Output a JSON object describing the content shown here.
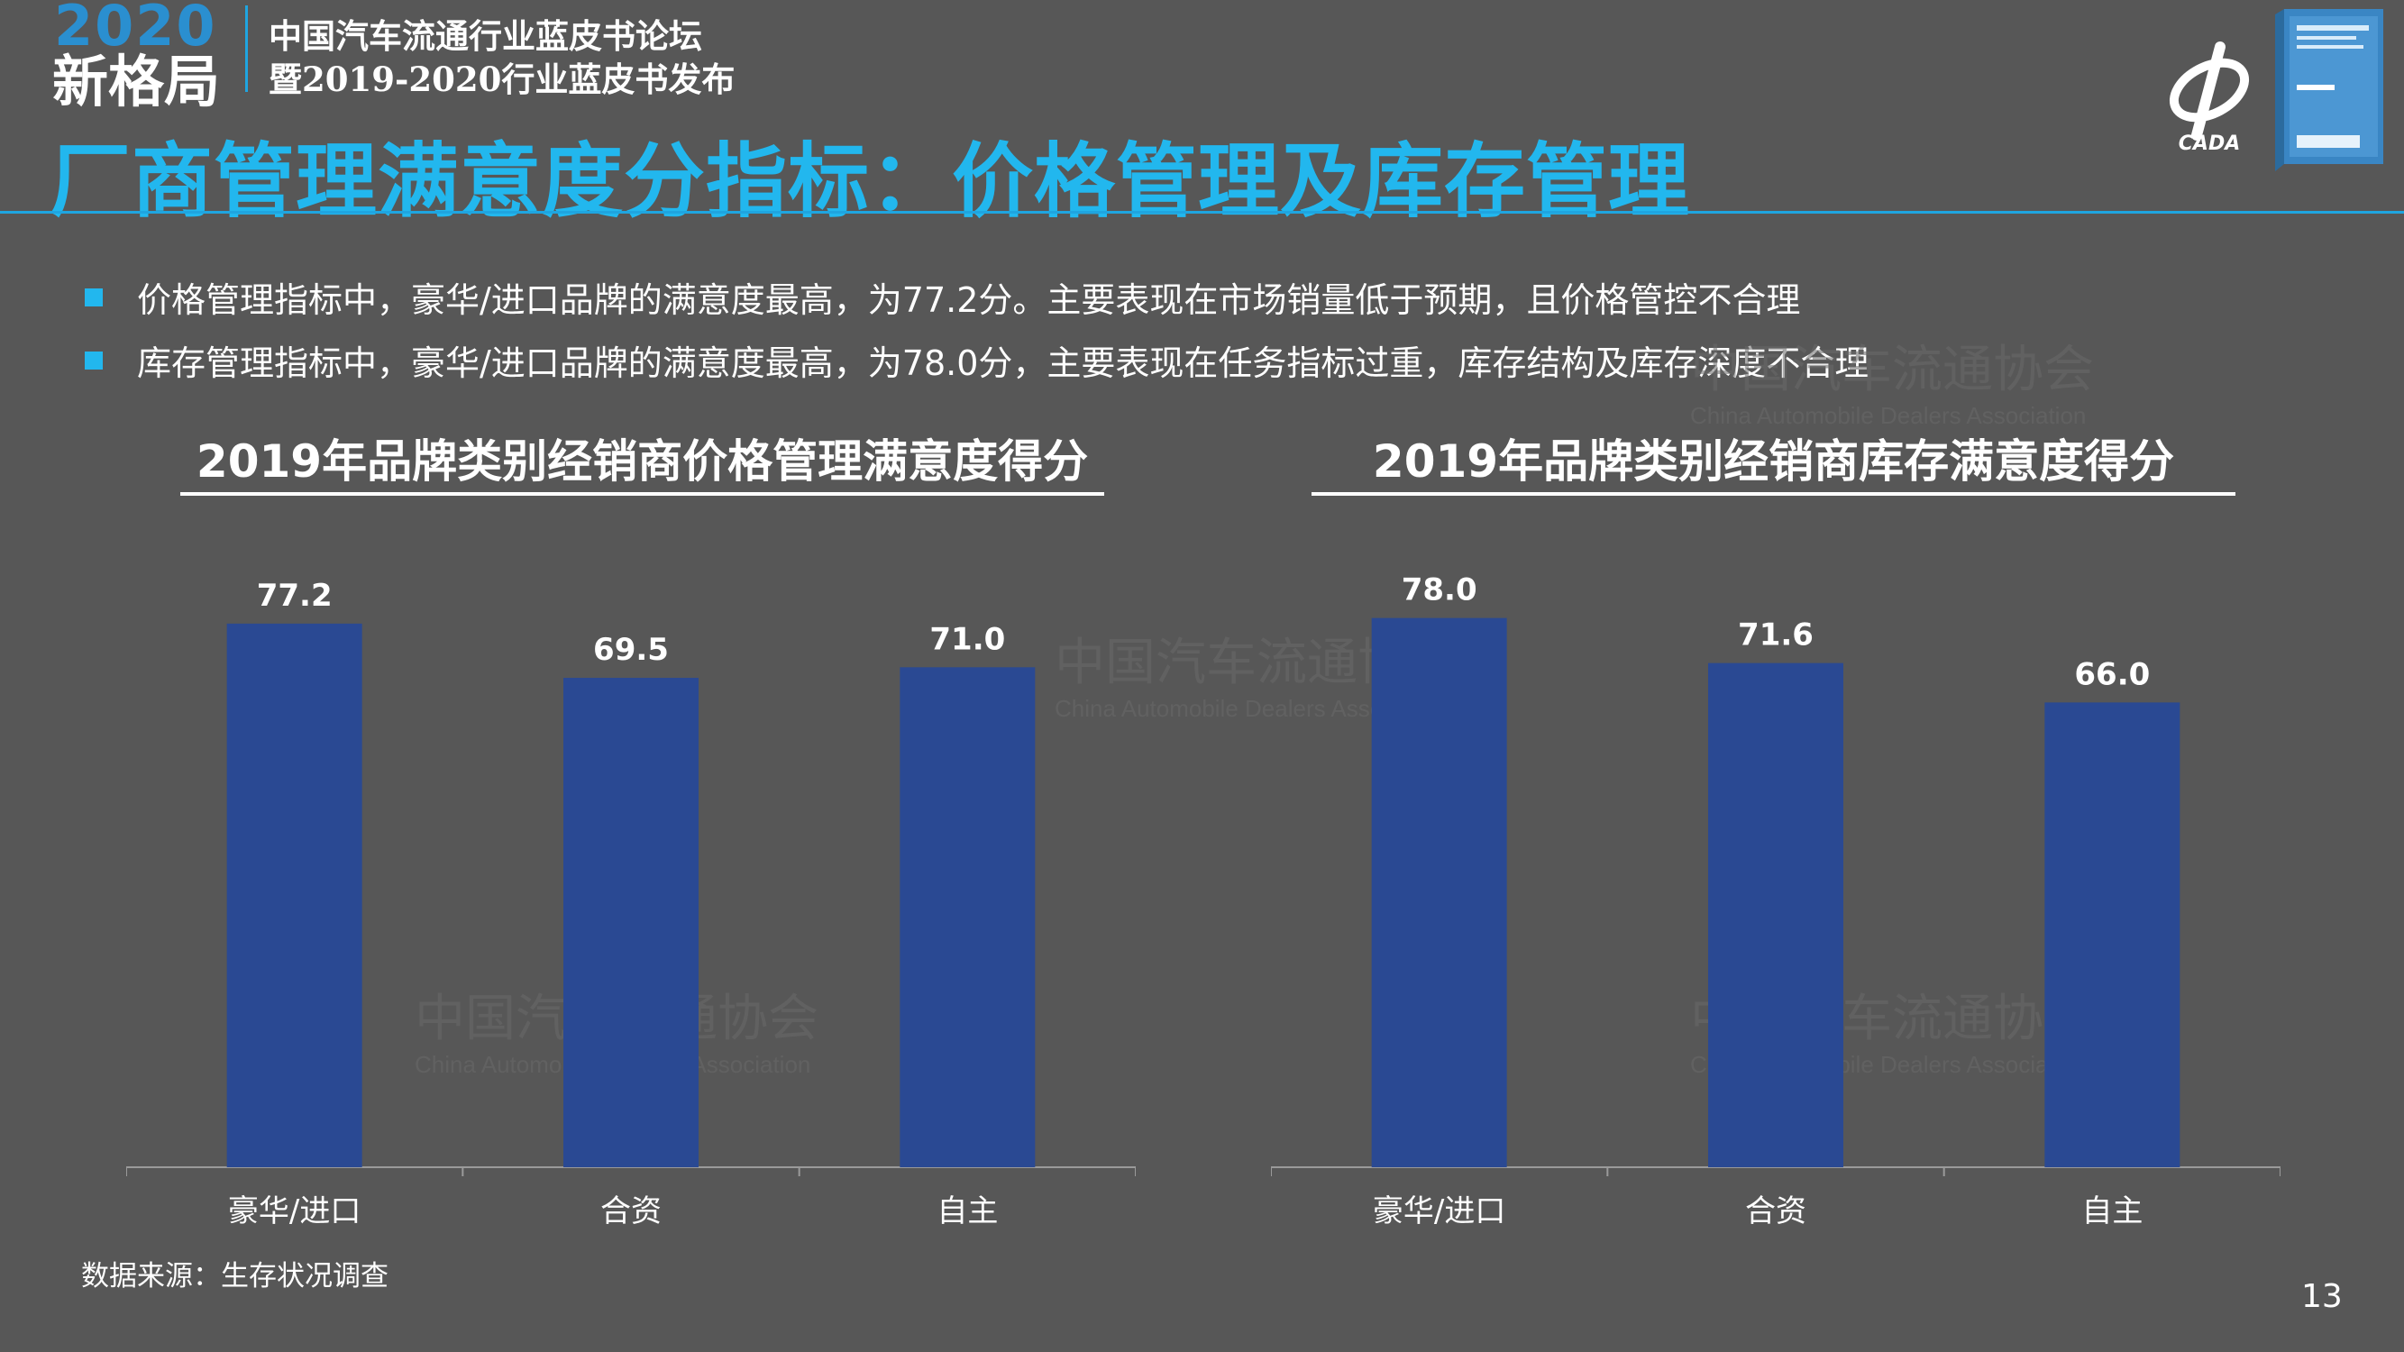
{
  "header": {
    "brand_year": "2020",
    "brand_name": "新格局",
    "forum_line1": "中国汽车流通行业蓝皮书论坛",
    "forum_line2": "暨2019-2020行业蓝皮书发布",
    "page_title": "厂商管理满意度分指标：价格管理及库存管理",
    "logo_text": "CADA"
  },
  "bullets": [
    "价格管理指标中，豪华/进口品牌的满意度最高，为77.2分。主要表现在市场销量低于预期，且价格管控不合理",
    "库存管理指标中，豪华/进口品牌的满意度最高，为78.0分，主要表现在任务指标过重，库存结构及库存深度不合理"
  ],
  "watermark": {
    "cn": "中国汽车流通协会",
    "en": "China Automobile Dealers Association"
  },
  "colors": {
    "background": "#575757",
    "accent": "#22b7ee",
    "bar": "#2a4993",
    "text": "#ffffff"
  },
  "chart_data": [
    {
      "type": "bar",
      "title": "2019年品牌类别经销商价格管理满意度得分",
      "categories": [
        "豪华/进口",
        "合资",
        "自主"
      ],
      "values": [
        77.2,
        69.5,
        71.0
      ],
      "value_labels": [
        "77.2",
        "69.5",
        "71.0"
      ],
      "ylim": [
        0,
        80
      ],
      "grid": false,
      "legend": "none"
    },
    {
      "type": "bar",
      "title": "2019年品牌类别经销商库存满意度得分",
      "categories": [
        "豪华/进口",
        "合资",
        "自主"
      ],
      "values": [
        78.0,
        71.6,
        66.0
      ],
      "value_labels": [
        "78.0",
        "71.6",
        "66.0"
      ],
      "ylim": [
        0,
        80
      ],
      "grid": false,
      "legend": "none"
    }
  ],
  "footer": {
    "source_note": "数据来源：生存状况调查",
    "page_number": "13"
  }
}
